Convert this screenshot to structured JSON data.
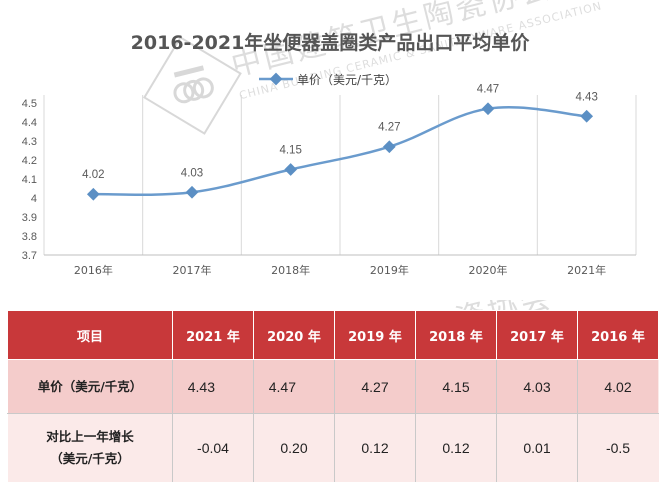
{
  "chart_data": {
    "type": "line",
    "title": "2016-2021年坐便器盖圈类产品出口平均单价",
    "categories": [
      "2016年",
      "2017年",
      "2018年",
      "2019年",
      "2020年",
      "2021年"
    ],
    "series": [
      {
        "name": "单价（美元/千克）",
        "values": [
          4.02,
          4.03,
          4.15,
          4.27,
          4.47,
          4.43
        ]
      }
    ],
    "data_labels": [
      "4.02",
      "4.03",
      "4.15",
      "4.27",
      "4.47",
      "4.43"
    ],
    "ylim": [
      3.7,
      4.5
    ],
    "yticks": [
      "3.7",
      "3.8",
      "3.9",
      "4",
      "4.1",
      "4.2",
      "4.3",
      "4.4",
      "4.5"
    ],
    "xlabel": "",
    "ylabel": "",
    "legend_position": "top-center",
    "grid": "vertical",
    "colors": {
      "line": "#6a9bcd",
      "marker": "#5b8fc4",
      "grid": "#d9d9d9",
      "title": "#555555"
    }
  },
  "watermark": {
    "cn": "中国建筑卫生陶瓷协会",
    "en": "CHINA BUILDING CERAMIC & SANITARYWARE ASSOCIATION"
  },
  "table": {
    "headers": [
      "项目",
      "2021 年",
      "2020 年",
      "2019 年",
      "2018 年",
      "2017 年",
      "2016 年"
    ],
    "rows": [
      {
        "label": [
          "单价（美元/千克）"
        ],
        "values": [
          "4.43",
          "4.47",
          "4.27",
          "4.15",
          "4.03",
          "4.02"
        ]
      },
      {
        "label": [
          "对比上一年增长",
          "（美元/千克）"
        ],
        "values": [
          "-0.04",
          "0.20",
          "0.12",
          "0.12",
          "0.01",
          "-0.5"
        ]
      }
    ],
    "colors": {
      "header_bg": "#c8383a",
      "row1_bg": "#f4cccb",
      "row2_bg": "#fbeae9"
    }
  }
}
